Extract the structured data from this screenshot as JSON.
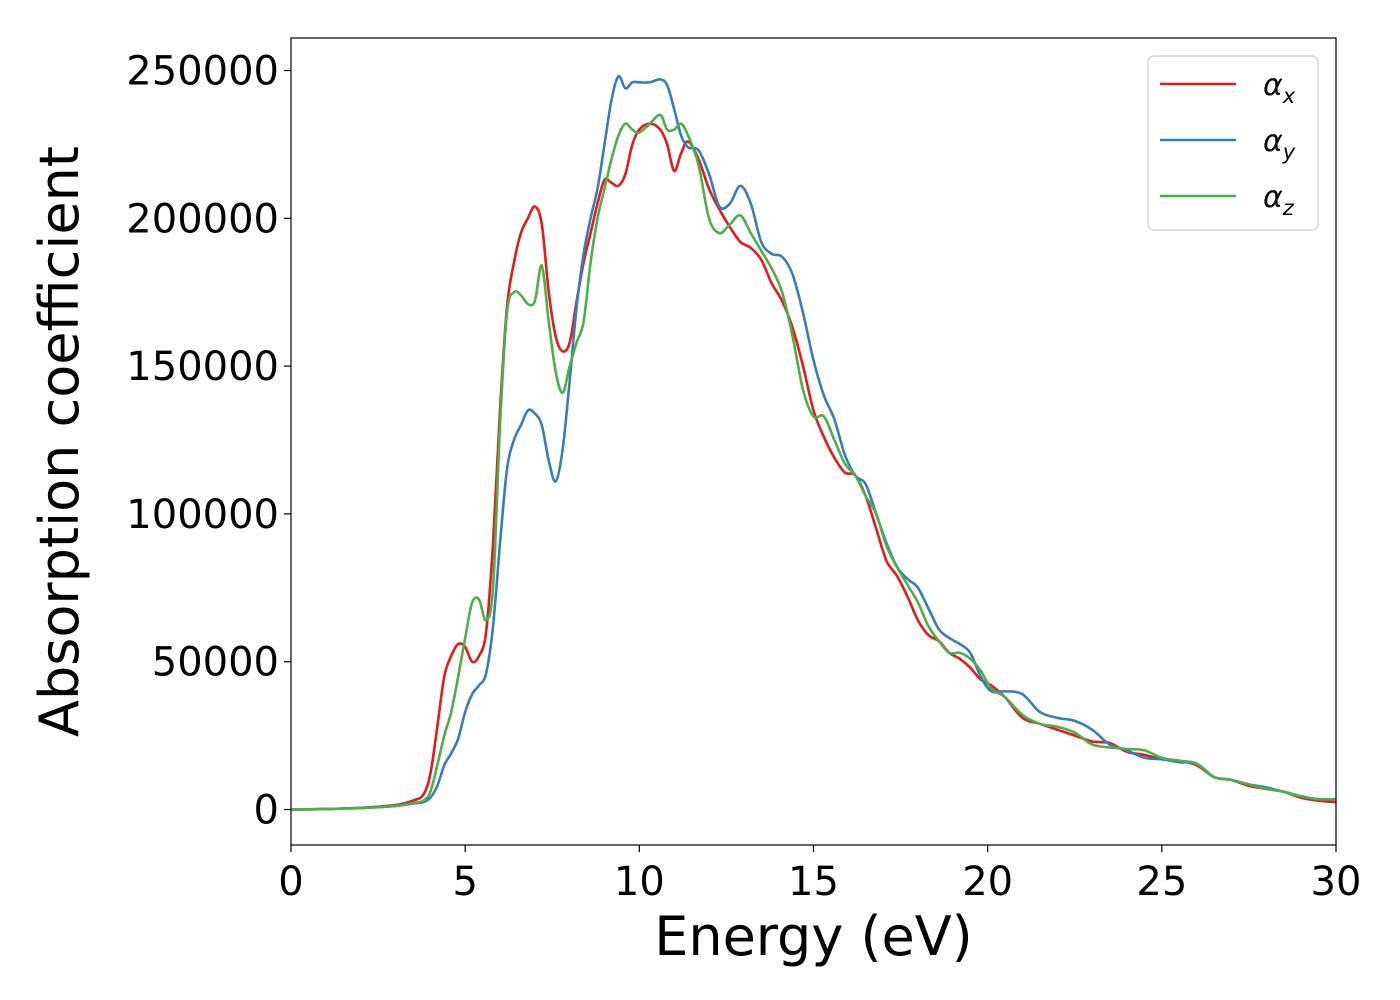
{
  "chart_data": {
    "type": "line",
    "xlabel": "Energy (eV)",
    "ylabel": "Absorption coefficient",
    "xlim": [
      0,
      30
    ],
    "ylim": [
      -12000,
      261000
    ],
    "xticks": [
      0,
      5,
      10,
      15,
      20,
      25,
      30
    ],
    "xtick_labels": [
      "0",
      "5",
      "10",
      "15",
      "20",
      "25",
      "30"
    ],
    "yticks": [
      0,
      50000,
      100000,
      150000,
      200000,
      250000
    ],
    "ytick_labels": [
      "0",
      "50000",
      "100000",
      "150000",
      "200000",
      "250000"
    ],
    "grid": false,
    "legend": {
      "position": "top-right"
    },
    "series": [
      {
        "name": "α_x",
        "legend_base": "α",
        "legend_sub": "x",
        "color": "#e41a1c",
        "x": [
          0,
          1,
          2,
          3,
          3.5,
          3.8,
          4.0,
          4.2,
          4.4,
          4.6,
          4.8,
          5.0,
          5.2,
          5.4,
          5.6,
          5.8,
          6.0,
          6.2,
          6.4,
          6.6,
          6.8,
          7.0,
          7.2,
          7.4,
          7.6,
          7.8,
          8.0,
          8.2,
          8.4,
          8.6,
          8.8,
          9.0,
          9.2,
          9.4,
          9.6,
          9.8,
          10.0,
          10.3,
          10.6,
          10.8,
          11.0,
          11.2,
          11.4,
          11.7,
          12.0,
          12.3,
          12.6,
          12.9,
          13.2,
          13.5,
          13.8,
          14.1,
          14.4,
          14.7,
          15.0,
          15.3,
          15.6,
          15.9,
          16.2,
          16.5,
          16.8,
          17.1,
          17.4,
          17.7,
          18.0,
          18.3,
          18.6,
          18.9,
          19.2,
          19.5,
          19.8,
          20.1,
          20.5,
          21.0,
          21.5,
          22.0,
          22.5,
          23.0,
          23.5,
          24.0,
          24.5,
          25.0,
          25.5,
          26.0,
          26.5,
          27.0,
          27.5,
          28.0,
          28.5,
          29.0,
          29.5,
          30.0
        ],
        "y": [
          0,
          200,
          600,
          1500,
          3000,
          5000,
          12000,
          28000,
          45000,
          52000,
          56000,
          55000,
          50000,
          52000,
          60000,
          90000,
          135000,
          170000,
          185000,
          195000,
          200000,
          204000,
          198000,
          175000,
          160000,
          155000,
          158000,
          172000,
          185000,
          195000,
          205000,
          213000,
          212000,
          211000,
          215000,
          225000,
          230000,
          232000,
          230000,
          225000,
          216000,
          222000,
          226000,
          220000,
          210000,
          203000,
          197000,
          192000,
          190000,
          186000,
          178000,
          172000,
          163000,
          150000,
          135000,
          126000,
          119000,
          114000,
          113000,
          106000,
          95000,
          84000,
          79000,
          72000,
          64000,
          59000,
          57000,
          53000,
          51000,
          48000,
          44000,
          42000,
          38000,
          31000,
          29000,
          27000,
          25000,
          23000,
          22500,
          19500,
          18500,
          17000,
          16500,
          15000,
          11000,
          10000,
          8000,
          7000,
          6000,
          4000,
          3000,
          2500
        ]
      },
      {
        "name": "α_y",
        "legend_base": "α",
        "legend_sub": "y",
        "color": "#377eb8",
        "x": [
          0,
          1,
          2,
          3,
          3.5,
          3.8,
          4.0,
          4.2,
          4.4,
          4.6,
          4.8,
          5.0,
          5.2,
          5.4,
          5.6,
          5.8,
          6.0,
          6.2,
          6.4,
          6.6,
          6.8,
          7.0,
          7.2,
          7.4,
          7.6,
          7.8,
          8.0,
          8.2,
          8.4,
          8.6,
          8.8,
          9.0,
          9.2,
          9.4,
          9.6,
          9.8,
          10.0,
          10.3,
          10.6,
          10.8,
          11.0,
          11.2,
          11.4,
          11.7,
          12.0,
          12.3,
          12.6,
          12.9,
          13.2,
          13.5,
          13.8,
          14.1,
          14.4,
          14.7,
          15.0,
          15.3,
          15.6,
          15.9,
          16.2,
          16.5,
          16.8,
          17.1,
          17.4,
          17.7,
          18.0,
          18.3,
          18.6,
          18.9,
          19.2,
          19.5,
          19.8,
          20.1,
          20.5,
          21.0,
          21.5,
          22.0,
          22.5,
          23.0,
          23.5,
          24.0,
          24.5,
          25.0,
          25.5,
          26.0,
          26.5,
          27.0,
          27.5,
          28.0,
          28.5,
          29.0,
          29.5,
          30.0
        ],
        "y": [
          0,
          150,
          500,
          1200,
          2000,
          2500,
          4000,
          8000,
          15000,
          19000,
          24000,
          33000,
          39000,
          42000,
          46000,
          62000,
          90000,
          115000,
          125000,
          130000,
          135000,
          134000,
          130000,
          118000,
          111000,
          122000,
          145000,
          170000,
          188000,
          200000,
          210000,
          225000,
          240000,
          248000,
          244000,
          246000,
          246000,
          246000,
          247000,
          245000,
          237000,
          228000,
          224000,
          223000,
          215000,
          204000,
          205000,
          211000,
          205000,
          192000,
          188000,
          187000,
          181000,
          168000,
          152000,
          140000,
          132000,
          120000,
          113000,
          110000,
          100000,
          90000,
          82000,
          78000,
          75000,
          68000,
          61000,
          58000,
          56000,
          53000,
          45000,
          40000,
          40000,
          39000,
          33000,
          31000,
          30000,
          27000,
          22000,
          20000,
          17500,
          17000,
          16000,
          15500,
          11000,
          10000,
          8500,
          7500,
          6000,
          4500,
          3500,
          3500
        ]
      },
      {
        "name": "α_z",
        "legend_base": "α",
        "legend_sub": "z",
        "color": "#4daf4a",
        "x": [
          0,
          1,
          2,
          3,
          3.5,
          3.8,
          4.0,
          4.2,
          4.4,
          4.6,
          4.8,
          5.0,
          5.2,
          5.4,
          5.6,
          5.8,
          6.0,
          6.2,
          6.4,
          6.6,
          6.8,
          7.0,
          7.2,
          7.4,
          7.6,
          7.8,
          8.0,
          8.2,
          8.4,
          8.6,
          8.8,
          9.0,
          9.2,
          9.4,
          9.6,
          9.8,
          10.0,
          10.3,
          10.6,
          10.8,
          11.0,
          11.2,
          11.4,
          11.7,
          12.0,
          12.3,
          12.6,
          12.9,
          13.2,
          13.5,
          13.8,
          14.1,
          14.4,
          14.7,
          15.0,
          15.3,
          15.6,
          15.9,
          16.2,
          16.5,
          16.8,
          17.1,
          17.4,
          17.7,
          18.0,
          18.3,
          18.6,
          18.9,
          19.2,
          19.5,
          19.8,
          20.1,
          20.5,
          21.0,
          21.5,
          22.0,
          22.5,
          23.0,
          23.5,
          24.0,
          24.5,
          25.0,
          25.5,
          26.0,
          26.5,
          27.0,
          27.5,
          28.0,
          28.5,
          29.0,
          29.5,
          30.0
        ],
        "y": [
          0,
          150,
          500,
          1200,
          2200,
          3000,
          6000,
          15000,
          25000,
          33000,
          45000,
          58000,
          70000,
          71000,
          64000,
          75000,
          130000,
          168000,
          175000,
          174000,
          171000,
          172000,
          184000,
          165000,
          148000,
          141000,
          150000,
          158000,
          165000,
          185000,
          200000,
          210000,
          220000,
          228000,
          232000,
          230000,
          229000,
          232000,
          235000,
          230000,
          230000,
          232000,
          228000,
          218000,
          200000,
          195000,
          198000,
          201000,
          195000,
          189000,
          183000,
          175000,
          160000,
          142000,
          133000,
          133000,
          125000,
          117000,
          113000,
          106000,
          100000,
          89000,
          82000,
          76000,
          70000,
          62000,
          57000,
          53000,
          53000,
          51000,
          47000,
          41000,
          38000,
          32000,
          29000,
          28000,
          26000,
          22000,
          21000,
          20500,
          20000,
          17500,
          16500,
          15500,
          11000,
          10000,
          8500,
          7000,
          6000,
          4500,
          3500,
          3500
        ]
      }
    ]
  }
}
